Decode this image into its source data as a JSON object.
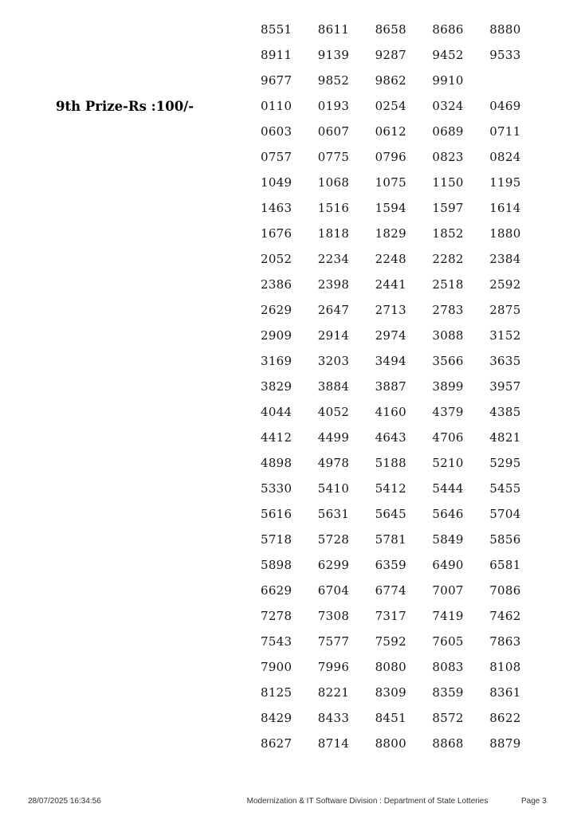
{
  "page_bg": "#ffffff",
  "text_color": "#141414",
  "sections": [
    {
      "label": "",
      "numbers": [
        "8551",
        "8611",
        "8658",
        "8686",
        "8880",
        "8911",
        "9139",
        "9287",
        "9452",
        "9533",
        "9677",
        "9852",
        "9862",
        "9910"
      ]
    },
    {
      "label": "9th Prize-Rs :100/-",
      "numbers": [
        "0110",
        "0193",
        "0254",
        "0324",
        "0469",
        "0603",
        "0607",
        "0612",
        "0689",
        "0711",
        "0757",
        "0775",
        "0796",
        "0823",
        "0824",
        "1049",
        "1068",
        "1075",
        "1150",
        "1195",
        "1463",
        "1516",
        "1594",
        "1597",
        "1614",
        "1676",
        "1818",
        "1829",
        "1852",
        "1880",
        "2052",
        "2234",
        "2248",
        "2282",
        "2384",
        "2386",
        "2398",
        "2441",
        "2518",
        "2592",
        "2629",
        "2647",
        "2713",
        "2783",
        "2875",
        "2909",
        "2914",
        "2974",
        "3088",
        "3152",
        "3169",
        "3203",
        "3494",
        "3566",
        "3635",
        "3829",
        "3884",
        "3887",
        "3899",
        "3957",
        "4044",
        "4052",
        "4160",
        "4379",
        "4385",
        "4412",
        "4499",
        "4643",
        "4706",
        "4821",
        "4898",
        "4978",
        "5188",
        "5210",
        "5295",
        "5330",
        "5410",
        "5412",
        "5444",
        "5455",
        "5616",
        "5631",
        "5645",
        "5646",
        "5704",
        "5718",
        "5728",
        "5781",
        "5849",
        "5856",
        "5898",
        "6299",
        "6359",
        "6490",
        "6581",
        "6629",
        "6704",
        "6774",
        "7007",
        "7086",
        "7278",
        "7308",
        "7317",
        "7419",
        "7462",
        "7543",
        "7577",
        "7592",
        "7605",
        "7863",
        "7900",
        "7996",
        "8080",
        "8083",
        "8108",
        "8125",
        "8221",
        "8309",
        "8359",
        "8361",
        "8429",
        "8433",
        "8451",
        "8572",
        "8622",
        "8627",
        "8714",
        "8800",
        "8868",
        "8879"
      ]
    }
  ],
  "footer": {
    "datetime": "28/07/2025 16:34:56",
    "division": "Modernization & IT Software Division : Department of State Lotteries",
    "page_number": "Page 3"
  }
}
